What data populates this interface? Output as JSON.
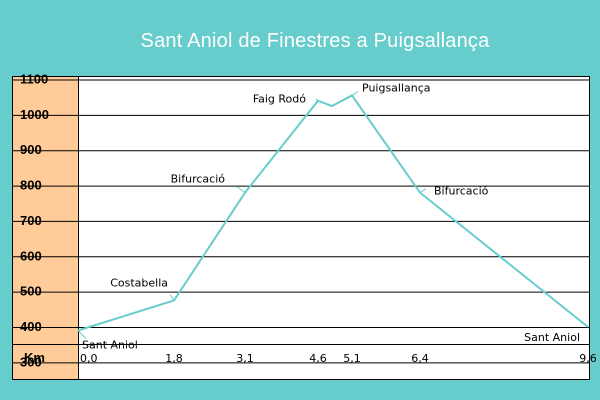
{
  "title": "Sant Aniol de Finestres a Puigsallança",
  "colors": {
    "background": "#66cccc",
    "axis_column": "#ffcc99",
    "line": "#66cccc",
    "plot_bg": "#ffffff"
  },
  "chart_data": {
    "type": "line",
    "title": "Sant Aniol de Finestres a Puigsallança",
    "xlabel": "Km",
    "ylabel": "",
    "x_tick_labels": [
      "0,0",
      "1,8",
      "3,1",
      "4,6",
      "5,1",
      "6,4",
      "9,6"
    ],
    "y_ticks": [
      300,
      400,
      500,
      600,
      700,
      800,
      900,
      1000,
      1100
    ],
    "ylim": [
      250,
      1110
    ],
    "xlim": [
      0,
      9.6
    ],
    "grid": true,
    "series": [
      {
        "x": [
          0,
          1.8,
          3.1,
          4.6,
          4.8,
          5.1,
          6.4,
          9.6
        ],
        "y": [
          390,
          475,
          780,
          1040,
          1025,
          1055,
          780,
          400
        ]
      }
    ],
    "annotations": [
      {
        "text": "Sant Aniol",
        "x": 0,
        "y": 390
      },
      {
        "text": "Costabella",
        "x": 1.8,
        "y": 475
      },
      {
        "text": "Bifurcació",
        "x": 3.1,
        "y": 780
      },
      {
        "text": "Faig Rodó",
        "x": 4.6,
        "y": 1040
      },
      {
        "text": "Puigsallança",
        "x": 5.1,
        "y": 1055
      },
      {
        "text": "Bifurcació",
        "x": 6.4,
        "y": 780
      },
      {
        "text": "Sant Aniol",
        "x": 9.6,
        "y": 400
      }
    ]
  }
}
